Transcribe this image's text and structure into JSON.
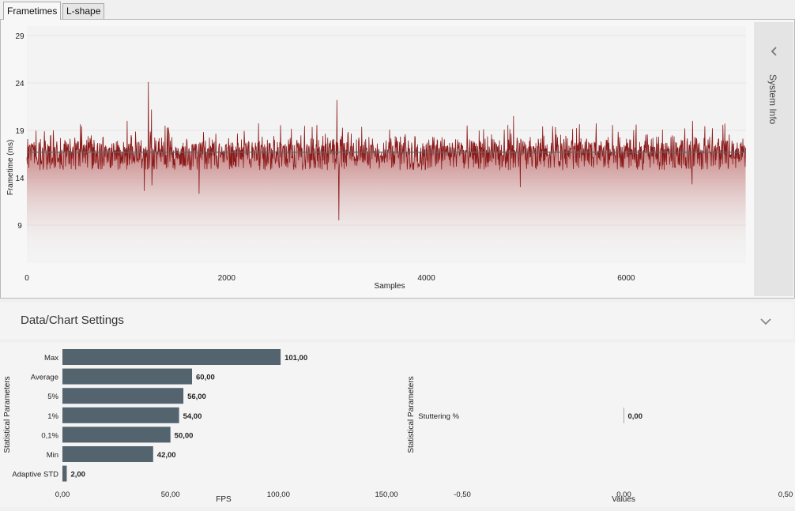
{
  "tabs": [
    {
      "label": "Frametimes"
    },
    {
      "label": "L-shape"
    }
  ],
  "side_panel": {
    "label": "System Info",
    "icon": "chevron-left-icon"
  },
  "settings": {
    "title": "Data/Chart Settings",
    "icon": "chevron-down-icon"
  },
  "colors": {
    "frametime_line": "#8b1a1a",
    "bar": "#53646e",
    "fill_top": "#8b1a1a"
  },
  "chart_data": [
    {
      "type": "line",
      "title": "",
      "xlabel": "Samples",
      "ylabel": "Frametime (ms)",
      "xlim": [
        0,
        7200
      ],
      "ylim": [
        5,
        30
      ],
      "x_ticks": [
        "0",
        "2000",
        "4000",
        "6000"
      ],
      "y_ticks": [
        "29",
        "24",
        "19",
        "14",
        "9"
      ],
      "series": [
        {
          "baseline_ms": 16.7,
          "typical_range_ms": [
            14.8,
            18.6
          ],
          "peaks": [
            [
              1215,
              24.1
            ],
            [
              1248,
              21.2
            ],
            [
              3105,
              22.2
            ],
            [
              1005,
              20.0
            ],
            [
              4870,
              20.5
            ],
            [
              6665,
              20.0
            ]
          ],
          "dips": [
            [
              3125,
              9.5
            ],
            [
              1175,
              12.6
            ],
            [
              1725,
              12.3
            ],
            [
              1250,
              13.2
            ],
            [
              4940,
              13.0
            ],
            [
              6660,
              13.3
            ]
          ]
        }
      ]
    },
    {
      "type": "bar",
      "orientation": "horizontal",
      "xlabel": "FPS",
      "ylabel": "Statistical Parameters",
      "xlim": [
        0,
        150
      ],
      "x_ticks": [
        "0,00",
        "50,00",
        "100,00",
        "150,00"
      ],
      "categories": [
        "Max",
        "Average",
        "5%",
        "1%",
        "0,1%",
        "Min",
        "Adaptive STD"
      ],
      "values": [
        101,
        60,
        56,
        54,
        50,
        42,
        2
      ],
      "value_labels": [
        "101,00",
        "60,00",
        "56,00",
        "54,00",
        "50,00",
        "42,00",
        "2,00"
      ]
    },
    {
      "type": "bar",
      "orientation": "horizontal",
      "xlabel": "Values",
      "ylabel": "Statistical Parameters",
      "xlim": [
        -0.5,
        0.5
      ],
      "x_ticks": [
        "-0,50",
        "0,00",
        "0,50"
      ],
      "categories": [
        "Stuttering %"
      ],
      "values": [
        0
      ],
      "value_labels": [
        "0,00"
      ]
    }
  ]
}
